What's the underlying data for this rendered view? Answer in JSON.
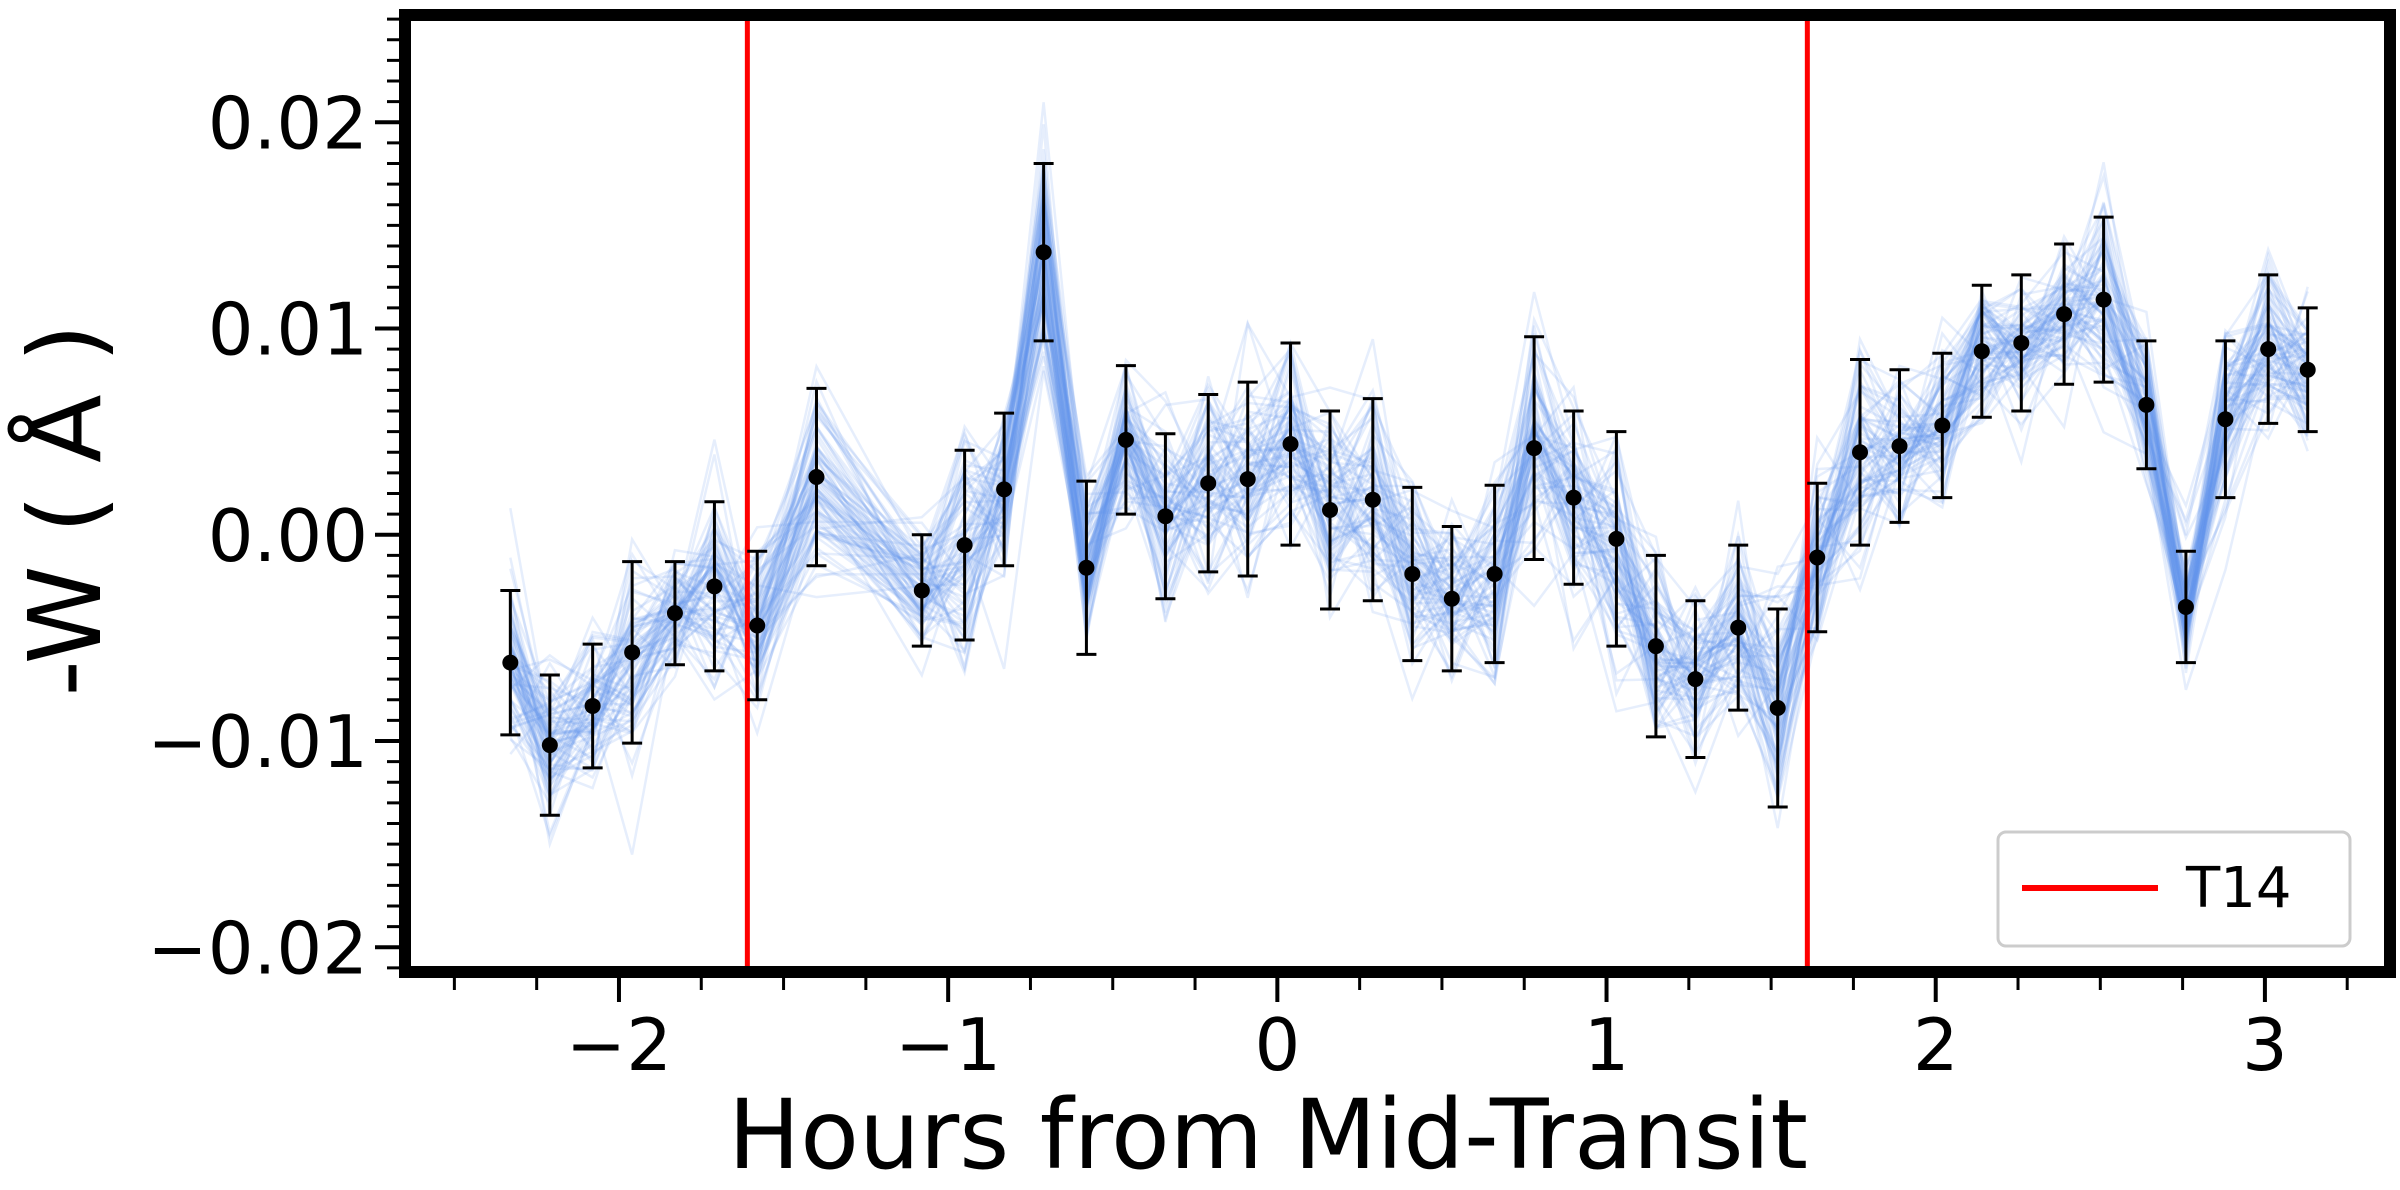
{
  "chart_data": {
    "type": "scatter",
    "xlabel": "Hours from Mid-Transit",
    "ylabel": "-W ( Å )",
    "xlim": [
      -2.65,
      3.38
    ],
    "ylim": [
      -0.0212,
      0.0252
    ],
    "xticks": [
      -2,
      -1,
      0,
      1,
      2,
      3
    ],
    "xtick_labels": [
      "−2",
      "−1",
      "0",
      "1",
      "2",
      "3"
    ],
    "yticks": [
      -0.02,
      -0.01,
      0.0,
      0.01,
      0.02
    ],
    "ytick_labels": [
      "−0.02",
      "−0.01",
      "0.00",
      "0.01",
      "0.02"
    ],
    "grid": false,
    "legend": {
      "position": "bottom-right",
      "entries": [
        "T14"
      ]
    },
    "colors": {
      "points": "#000000",
      "model_draws": "#6495ED",
      "t14": "#FF0000",
      "frame": "#000000"
    },
    "t14_lines": [
      -1.61,
      1.61
    ],
    "series": [
      {
        "x": [
          -2.33,
          -2.21,
          -2.08,
          -1.96,
          -1.83,
          -1.71,
          -1.58,
          -1.4,
          -1.08,
          -0.95,
          -0.83,
          -0.71,
          -0.58,
          -0.46,
          -0.34,
          -0.21,
          -0.09,
          0.04,
          0.16,
          0.29,
          0.41,
          0.53,
          0.66,
          0.78,
          0.9,
          1.03,
          1.15,
          1.27,
          1.4,
          1.52,
          1.64,
          1.77,
          1.89,
          2.02,
          2.14,
          2.26,
          2.39,
          2.51,
          2.64,
          2.76,
          2.88,
          3.01,
          3.13
        ],
        "y": [
          -0.0062,
          -0.0102,
          -0.0083,
          -0.0057,
          -0.0038,
          -0.0025,
          -0.0044,
          0.0028,
          -0.0027,
          -0.0005,
          0.0022,
          0.0137,
          -0.0016,
          0.0046,
          0.0009,
          0.0025,
          0.0027,
          0.0044,
          0.0012,
          0.0017,
          -0.0019,
          -0.0031,
          -0.0019,
          0.0042,
          0.0018,
          -0.0002,
          -0.0054,
          -0.007,
          -0.0045,
          -0.0084,
          -0.0011,
          0.004,
          0.0043,
          0.0053,
          0.0089,
          0.0093,
          0.0107,
          0.0114,
          0.0063,
          -0.0035,
          0.0056,
          0.009,
          0.008
        ],
        "yerr": [
          0.0035,
          0.0034,
          0.003,
          0.0044,
          0.0025,
          0.0041,
          0.0036,
          0.0043,
          0.0027,
          0.0046,
          0.0037,
          0.0043,
          0.0042,
          0.0036,
          0.004,
          0.0043,
          0.0047,
          0.0049,
          0.0048,
          0.0049,
          0.0042,
          0.0035,
          0.0043,
          0.0054,
          0.0042,
          0.0052,
          0.0044,
          0.0038,
          0.004,
          0.0048,
          0.0036,
          0.0045,
          0.0037,
          0.0035,
          0.0032,
          0.0033,
          0.0034,
          0.004,
          0.0031,
          0.0027,
          0.0038,
          0.0036,
          0.003
        ]
      }
    ]
  }
}
